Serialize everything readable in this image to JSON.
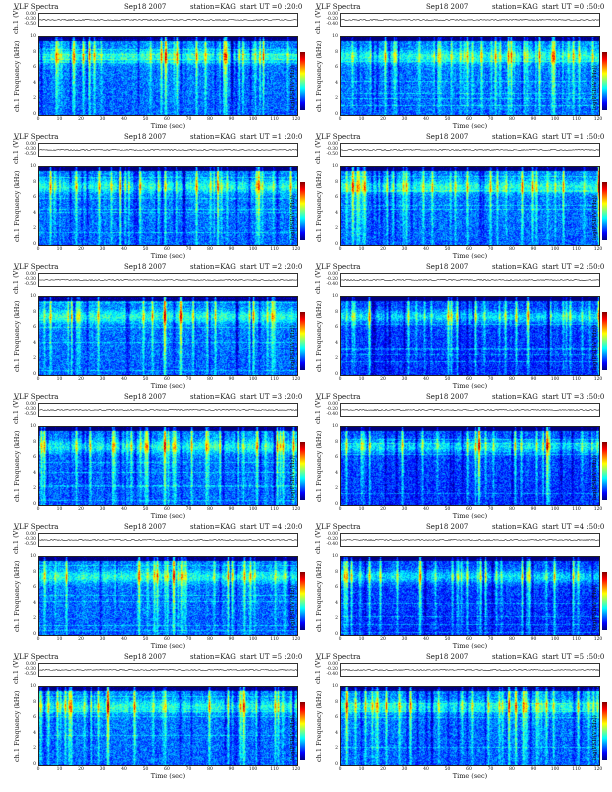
{
  "chart_data": [
    {
      "type": "heatmap",
      "title": "VLF Spectra",
      "date": "Sep18 2007",
      "station": "station=KAG",
      "start": "start UT =0 :20:0",
      "ylabel_ts": "ch.1 (V)",
      "ts_yticks": [
        "0.00",
        "-0.30",
        "-0.50"
      ],
      "ylabel_spec": "ch.1 Frequency (kHz)",
      "yticks": [
        "0",
        "2",
        "4",
        "6",
        "8",
        "10"
      ],
      "xlabel": "Time (sec)",
      "xticks": [
        "0",
        "10",
        "20",
        "30",
        "40",
        "50",
        "60",
        "70",
        "80",
        "90",
        "100",
        "110",
        "120"
      ],
      "xlim": [
        0,
        120
      ],
      "ylim": [
        0,
        10
      ],
      "colorbar_label": "log(PSD(V²/Hz))"
    },
    {
      "type": "heatmap",
      "title": "VLF Spectra",
      "date": "Sep18 2007",
      "station": "station=KAG",
      "start": "start UT =0 :50:0",
      "ylabel_ts": "ch.1 (V)",
      "ts_yticks": [
        "0.00",
        "-0.20",
        "-0.40"
      ],
      "ylabel_spec": "ch.1 Frequency (kHz)",
      "yticks": [
        "0",
        "2",
        "4",
        "6",
        "8",
        "10"
      ],
      "xlabel": "Time (sec)",
      "xticks": [
        "0",
        "10",
        "20",
        "30",
        "40",
        "50",
        "60",
        "70",
        "80",
        "90",
        "100",
        "110",
        "120"
      ],
      "xlim": [
        0,
        120
      ],
      "ylim": [
        0,
        10
      ],
      "colorbar_label": "log(PSD(V²/Hz))"
    },
    {
      "type": "heatmap",
      "title": "VLF Spectra",
      "date": "Sep18 2007",
      "station": "station=KAG",
      "start": "start UT =1 :20:0",
      "ylabel_ts": "ch.1 (V)",
      "ts_yticks": [
        "0.00",
        "-0.30",
        "-0.50"
      ],
      "ylabel_spec": "ch.1 Frequency (kHz)",
      "yticks": [
        "0",
        "2",
        "4",
        "6",
        "8",
        "10"
      ],
      "xlabel": "Time (sec)",
      "xticks": [
        "0",
        "10",
        "20",
        "30",
        "40",
        "50",
        "60",
        "70",
        "80",
        "90",
        "100",
        "110",
        "120"
      ],
      "xlim": [
        0,
        120
      ],
      "ylim": [
        0,
        10
      ],
      "colorbar_label": "log(PSD(V²/Hz))"
    },
    {
      "type": "heatmap",
      "title": "VLF Spectra",
      "date": "Sep18 2007",
      "station": "station=KAG",
      "start": "start UT =1 :50:0",
      "ylabel_ts": "ch.1 (V)",
      "ts_yticks": [
        "0.00",
        "-0.30",
        "-0.50"
      ],
      "ylabel_spec": "ch.1 Frequency (kHz)",
      "yticks": [
        "0",
        "2",
        "4",
        "6",
        "8",
        "10"
      ],
      "xlabel": "Time (sec)",
      "xticks": [
        "0",
        "10",
        "20",
        "30",
        "40",
        "50",
        "60",
        "70",
        "80",
        "90",
        "100",
        "110",
        "120"
      ],
      "xlim": [
        0,
        120
      ],
      "ylim": [
        0,
        10
      ],
      "colorbar_label": "log(PSD(V²/Hz))"
    },
    {
      "type": "heatmap",
      "title": "VLF Spectra",
      "date": "Sep18 2007",
      "station": "station=KAG",
      "start": "start UT =2 :20:0",
      "ylabel_ts": "ch.1 (V)",
      "ts_yticks": [
        "0.00",
        "-0.30",
        "-0.50"
      ],
      "ylabel_spec": "ch.1 Frequency (kHz)",
      "yticks": [
        "0",
        "2",
        "4",
        "6",
        "8",
        "10"
      ],
      "xlabel": "Time (sec)",
      "xticks": [
        "0",
        "10",
        "20",
        "30",
        "40",
        "50",
        "60",
        "70",
        "80",
        "90",
        "100",
        "110",
        "120"
      ],
      "xlim": [
        0,
        120
      ],
      "ylim": [
        0,
        10
      ],
      "colorbar_label": "log(PSD(V²/Hz))"
    },
    {
      "type": "heatmap",
      "title": "VLF Spectra",
      "date": "Sep18 2007",
      "station": "station=KAG",
      "start": "start UT =2 :50:0",
      "ylabel_ts": "ch.1 (V)",
      "ts_yticks": [
        "0.00",
        "-0.20",
        "-0.40"
      ],
      "ylabel_spec": "ch.1 Frequency (kHz)",
      "yticks": [
        "0",
        "2",
        "4",
        "6",
        "8",
        "10"
      ],
      "xlabel": "Time (sec)",
      "xticks": [
        "0",
        "10",
        "20",
        "30",
        "40",
        "50",
        "60",
        "70",
        "80",
        "90",
        "100",
        "110",
        "120"
      ],
      "xlim": [
        0,
        120
      ],
      "ylim": [
        0,
        10
      ],
      "colorbar_label": "log(PSD(V²/Hz))"
    },
    {
      "type": "heatmap",
      "title": "VLF Spectra",
      "date": "Sep18 2007",
      "station": "station=KAG",
      "start": "start UT =3 :20:0",
      "ylabel_ts": "ch.1 (V)",
      "ts_yticks": [
        "0.00",
        "-0.30",
        "-0.50"
      ],
      "ylabel_spec": "ch.1 Frequency (kHz)",
      "yticks": [
        "0",
        "2",
        "4",
        "6",
        "8",
        "10"
      ],
      "xlabel": "Time (sec)",
      "xticks": [
        "0",
        "10",
        "20",
        "30",
        "40",
        "50",
        "60",
        "70",
        "80",
        "90",
        "100",
        "110",
        "120"
      ],
      "xlim": [
        0,
        120
      ],
      "ylim": [
        0,
        10
      ],
      "colorbar_label": "log(PSD(V²/Hz))"
    },
    {
      "type": "heatmap",
      "title": "VLF Spectra",
      "date": "Sep18 2007",
      "station": "station=KAG",
      "start": "start UT =3 :50:0",
      "ylabel_ts": "ch.1 (V)",
      "ts_yticks": [
        "0.00",
        "-0.20",
        "-0.40"
      ],
      "ylabel_spec": "ch.1 Frequency (kHz)",
      "yticks": [
        "0",
        "2",
        "4",
        "6",
        "8",
        "10"
      ],
      "xlabel": "Time (sec)",
      "xticks": [
        "0",
        "10",
        "20",
        "30",
        "40",
        "50",
        "60",
        "70",
        "80",
        "90",
        "100",
        "110",
        "120"
      ],
      "xlim": [
        0,
        120
      ],
      "ylim": [
        0,
        10
      ],
      "colorbar_label": "log(PSD(V²/Hz))"
    },
    {
      "type": "heatmap",
      "title": "VLF Spectra",
      "date": "Sep18 2007",
      "station": "station=KAG",
      "start": "start UT =4 :20:0",
      "ylabel_ts": "ch.1 (V)",
      "ts_yticks": [
        "0.00",
        "-0.30",
        "-0.50"
      ],
      "ylabel_spec": "ch.1 Frequency (kHz)",
      "yticks": [
        "0",
        "2",
        "4",
        "6",
        "8",
        "10"
      ],
      "xlabel": "Time (sec)",
      "xticks": [
        "0",
        "10",
        "20",
        "30",
        "40",
        "50",
        "60",
        "70",
        "80",
        "90",
        "100",
        "110",
        "120"
      ],
      "xlim": [
        0,
        120
      ],
      "ylim": [
        0,
        10
      ],
      "colorbar_label": "log(PSD(V²/Hz))"
    },
    {
      "type": "heatmap",
      "title": "VLF Spectra",
      "date": "Sep18 2007",
      "station": "station=KAG",
      "start": "start UT =4 :50:0",
      "ylabel_ts": "ch.1 (V)",
      "ts_yticks": [
        "0.00",
        "-0.20",
        "-0.40"
      ],
      "ylabel_spec": "ch.1 Frequency (kHz)",
      "yticks": [
        "0",
        "2",
        "4",
        "6",
        "8",
        "10"
      ],
      "xlabel": "Time (sec)",
      "xticks": [
        "0",
        "10",
        "20",
        "30",
        "40",
        "50",
        "60",
        "70",
        "80",
        "90",
        "100",
        "110",
        "120"
      ],
      "xlim": [
        0,
        120
      ],
      "ylim": [
        0,
        10
      ],
      "colorbar_label": "log(PSD(V²/Hz))"
    },
    {
      "type": "heatmap",
      "title": "VLF Spectra",
      "date": "Sep18 2007",
      "station": "station=KAG",
      "start": "start UT =5 :20:0",
      "ylabel_ts": "ch.1 (V)",
      "ts_yticks": [
        "0.00",
        "-0.30",
        "-0.50"
      ],
      "ylabel_spec": "ch.1 Frequency (kHz)",
      "yticks": [
        "0",
        "2",
        "4",
        "6",
        "8",
        "10"
      ],
      "xlabel": "Time (sec)",
      "xticks": [
        "0",
        "10",
        "20",
        "30",
        "40",
        "50",
        "60",
        "70",
        "80",
        "90",
        "100",
        "110",
        "120"
      ],
      "xlim": [
        0,
        120
      ],
      "ylim": [
        0,
        10
      ],
      "colorbar_label": "log(PSD(V²/Hz))"
    },
    {
      "type": "heatmap",
      "title": "VLF Spectra",
      "date": "Sep18 2007",
      "station": "station=KAG",
      "start": "start UT =5 :50:0",
      "ylabel_ts": "ch.1 (V)",
      "ts_yticks": [
        "0.00",
        "-0.20",
        "-0.40"
      ],
      "ylabel_spec": "ch.1 Frequency (kHz)",
      "yticks": [
        "0",
        "2",
        "4",
        "6",
        "8",
        "10"
      ],
      "xlabel": "Time (sec)",
      "xticks": [
        "0",
        "10",
        "20",
        "30",
        "40",
        "50",
        "60",
        "70",
        "80",
        "90",
        "100",
        "110",
        "120"
      ],
      "xlim": [
        0,
        120
      ],
      "ylim": [
        0,
        10
      ],
      "colorbar_label": "log(PSD(V²/Hz))"
    }
  ],
  "colormap": [
    "#00007f",
    "#0000ff",
    "#007fff",
    "#00ffff",
    "#7fff7f",
    "#ffff00",
    "#ff7f00",
    "#ff0000",
    "#7f0000"
  ]
}
